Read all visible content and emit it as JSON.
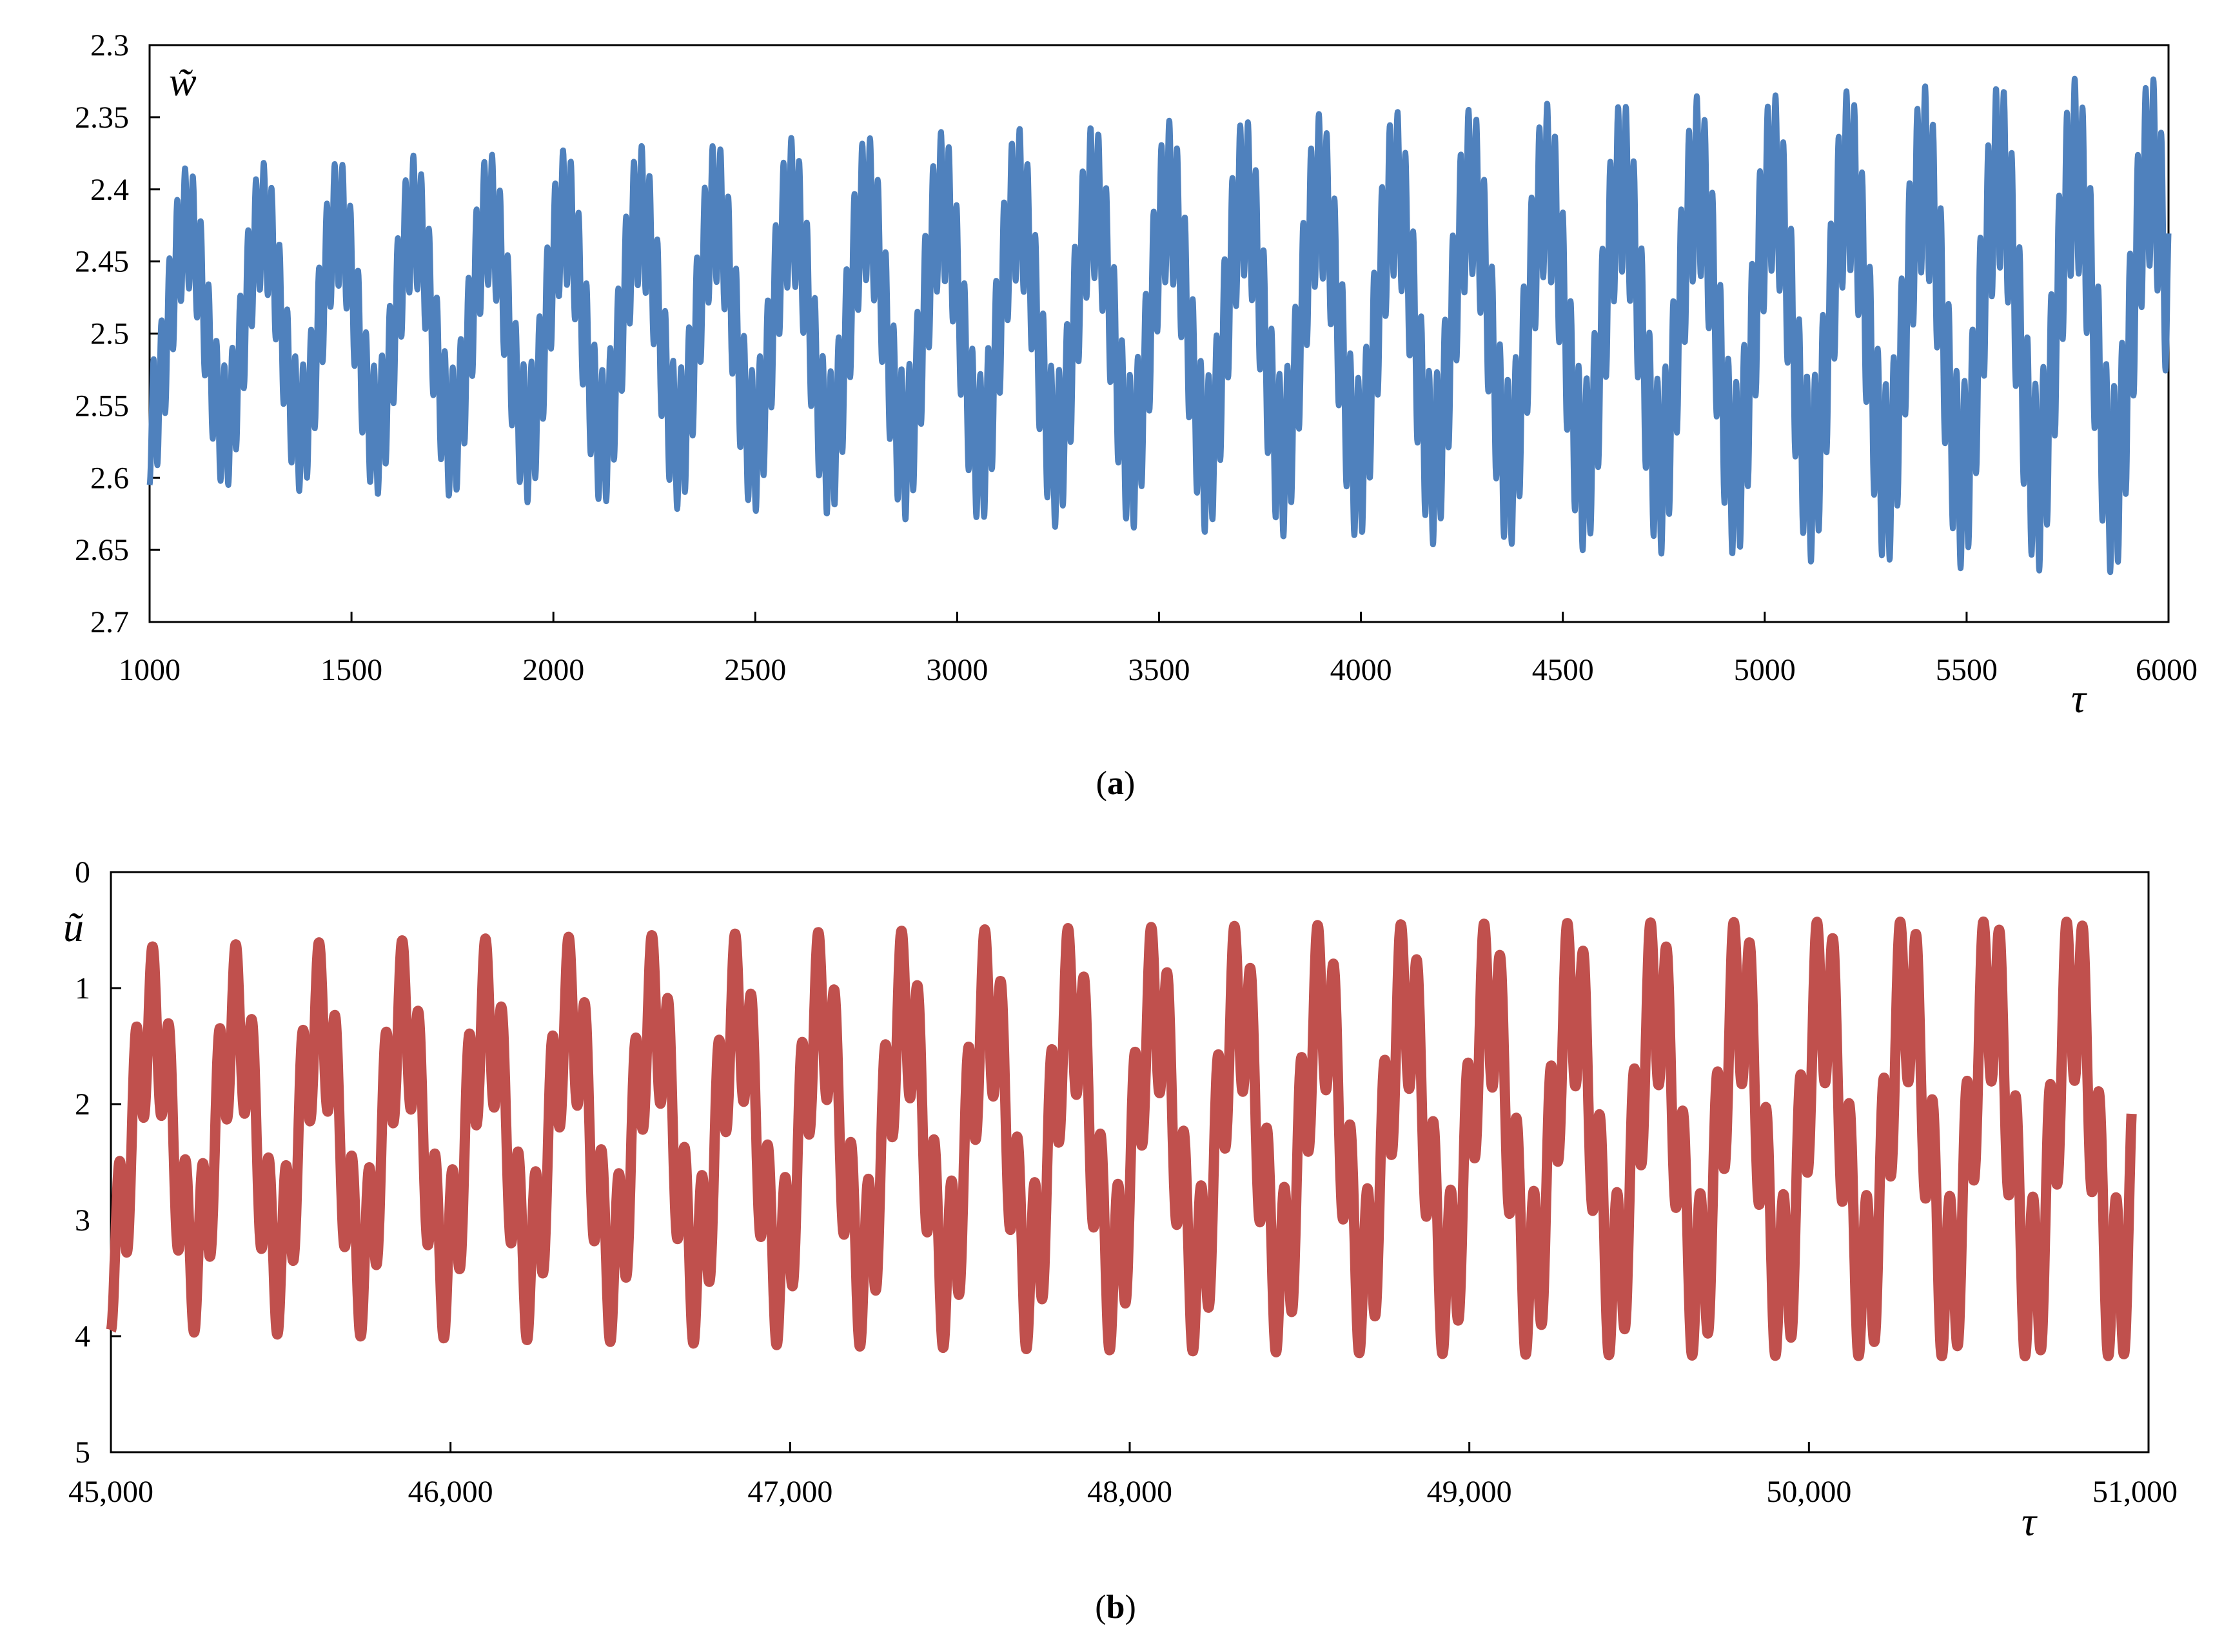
{
  "chart_data": [
    {
      "type": "line",
      "panel_label": "a",
      "ylabel": "w̃",
      "xlabel": "τ",
      "xlim": [
        1000,
        6000
      ],
      "ylim": [
        2.3,
        2.7
      ],
      "y_inverted": true,
      "x_ticks": [
        "1000",
        "1500",
        "2000",
        "2500",
        "3000",
        "3500",
        "4000",
        "4500",
        "5000",
        "5500",
        "6000"
      ],
      "y_ticks": [
        "2.3",
        "2.35",
        "2.4",
        "2.45",
        "2.5",
        "2.55",
        "2.6",
        "2.65",
        "2.7"
      ],
      "grid": false,
      "color": "#4F81BD",
      "series": [
        {
          "signal": "beating oscillation, envelope slowly growing",
          "mean": 2.495,
          "x_start": 1000,
          "x_end": 6000,
          "slow_period": 187,
          "fast_period": 19.5,
          "amplitude_start": 0.11,
          "amplitude_end": 0.175
        }
      ]
    },
    {
      "type": "line",
      "panel_label": "b",
      "ylabel": "ũ",
      "xlabel": "τ",
      "xlim": [
        45000,
        51000
      ],
      "ylim": [
        0,
        5
      ],
      "y_inverted": true,
      "x_ticks": [
        "45,000",
        "46,000",
        "47,000",
        "48,000",
        "49,000",
        "50,000",
        "51,000"
      ],
      "y_ticks": [
        "0",
        "1",
        "2",
        "3",
        "4",
        "5"
      ],
      "grid": false,
      "color": "#C0504D",
      "series": [
        {
          "signal": "beating oscillation, envelope slowly growing",
          "mean": 2.3,
          "x_start": 45000,
          "x_end": 50950,
          "slow_period": 246,
          "fast_period": 49,
          "amplitude_start": 1.65,
          "amplitude_end": 2.1
        }
      ]
    }
  ],
  "captions": {
    "a": {
      "open": "(",
      "letter": "a",
      "close": ")"
    },
    "b": {
      "open": "(",
      "letter": "b",
      "close": ")"
    }
  }
}
